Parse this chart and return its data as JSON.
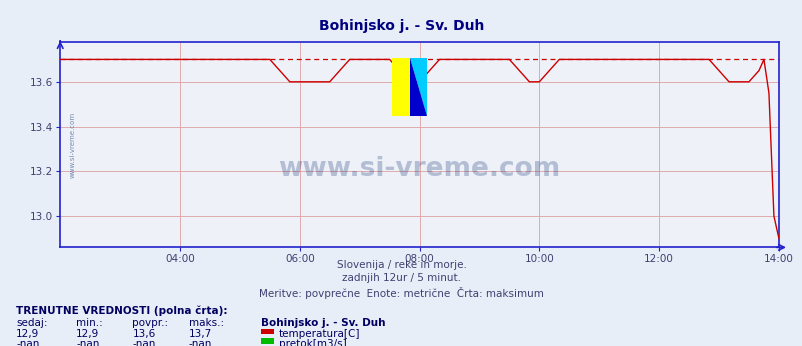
{
  "title": "Bohinjsko j. - Sv. Duh",
  "title_color": "#000080",
  "bg_color": "#e8eef8",
  "plot_bg_color": "#eef2f8",
  "line_color": "#cc0000",
  "dashed_line_color": "#cc0000",
  "axis_color": "#2222cc",
  "grid_color": "#dda0a0",
  "text_color": "#404070",
  "watermark_color": "#1a3a7a",
  "xlim": [
    0,
    144
  ],
  "ylim": [
    12.86,
    13.78
  ],
  "yticks": [
    13.0,
    13.2,
    13.4,
    13.6
  ],
  "xtick_labels": [
    "04:00",
    "06:00",
    "08:00",
    "10:00",
    "12:00",
    "14:00"
  ],
  "xtick_positions": [
    24,
    48,
    72,
    96,
    120,
    144
  ],
  "max_value": 13.7,
  "subtitle1": "Slovenija / reke in morje.",
  "subtitle2": "zadnjih 12ur / 5 minut.",
  "subtitle3": "Meritve: povprečne  Enote: metrične  Črta: maksimum",
  "legend_title": "TRENUTNE VREDNOSTI (polna črta):",
  "col_headers": [
    "sedaj:",
    "min.:",
    "povpr.:",
    "maks.:",
    "Bohinjsko j. - Sv. Duh"
  ],
  "row1": [
    "12,9",
    "12,9",
    "13,6",
    "13,7",
    "temperatura[C]"
  ],
  "row2": [
    "-nan",
    "-nan",
    "-nan",
    "-nan",
    "pretok[m3/s]"
  ],
  "temp_legend_color": "#cc0000",
  "flow_legend_color": "#00bb00",
  "watermark_text": "www.si-vreme.com",
  "logo_yellow": "#ffff00",
  "logo_cyan": "#00ccff",
  "logo_blue": "#0000cc"
}
